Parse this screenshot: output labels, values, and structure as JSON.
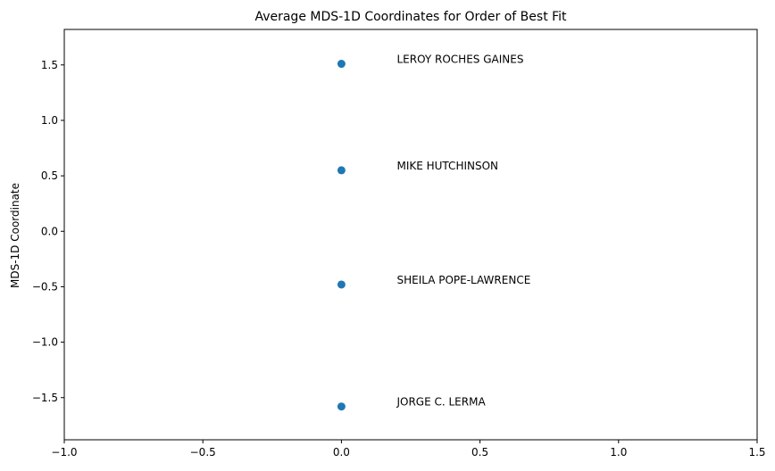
{
  "chart_data": {
    "type": "scatter",
    "title": "Average MDS-1D Coordinates for Order of Best Fit",
    "xlabel": "",
    "ylabel": "MDS-1D Coordinate",
    "xlim": [
      -1.0,
      1.5
    ],
    "ylim": [
      -1.88,
      1.82
    ],
    "xticks": [
      -1.0,
      -0.5,
      0.0,
      0.5,
      1.0,
      1.5
    ],
    "xtick_labels": [
      "−1.0",
      "−0.5",
      "0.0",
      "0.5",
      "1.0",
      "1.5"
    ],
    "yticks": [
      -1.5,
      -1.0,
      -0.5,
      0.0,
      0.5,
      1.0,
      1.5
    ],
    "ytick_labels": [
      "−1.5",
      "−1.0",
      "−0.5",
      "0.0",
      "0.5",
      "1.0",
      "1.5"
    ],
    "grid": false,
    "marker_color": "#1f77b4",
    "points": [
      {
        "x": 0.0,
        "y": 1.51,
        "label": "LEROY ROCHES GAINES",
        "label_x": 0.2,
        "label_y": 1.51
      },
      {
        "x": 0.0,
        "y": 0.55,
        "label": "MIKE HUTCHINSON",
        "label_x": 0.2,
        "label_y": 0.55
      },
      {
        "x": 0.0,
        "y": -0.48,
        "label": "SHEILA POPE-LAWRENCE",
        "label_x": 0.2,
        "label_y": -0.48
      },
      {
        "x": 0.0,
        "y": -1.58,
        "label": "JORGE C. LERMA",
        "label_x": 0.2,
        "label_y": -1.58
      }
    ]
  }
}
